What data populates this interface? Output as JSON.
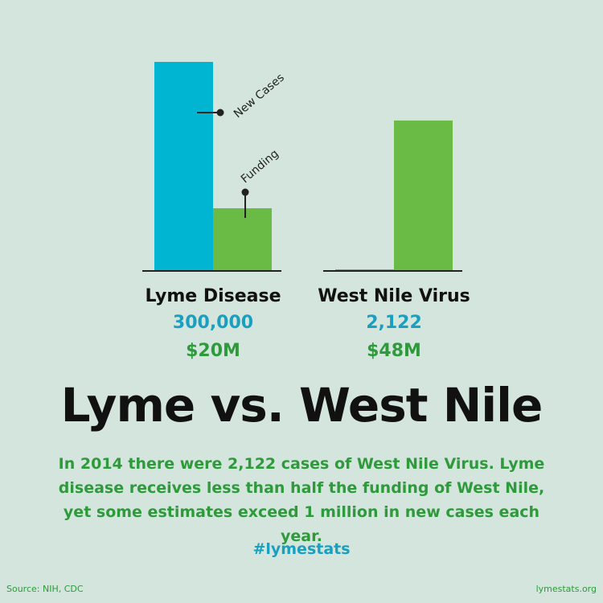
{
  "chart_data": {
    "type": "bar",
    "title": "Lyme vs. West Nile",
    "subtitle": "In 2014 there were 2,122 cases of West Nile Virus. Lyme disease receives less than half the funding of West Nile, yet some estimates exceed 1 million in new cases each year.",
    "hashtag": "#lymestats",
    "source": "Source: NIH, CDC",
    "website": "lymestats.org",
    "categories": [
      "Lyme Disease",
      "West Nile Virus"
    ],
    "series": [
      {
        "name": "New Cases",
        "color": "#00b5d1",
        "label_color": "#1a9fc0",
        "values": [
          300000,
          2122
        ],
        "value_labels": [
          "300,000",
          "2,122"
        ]
      },
      {
        "name": "Funding",
        "color": "#6abb45",
        "label_color": "#2e9a3b",
        "axis": "y2",
        "values": [
          20000000,
          48000000
        ],
        "value_labels": [
          "$20M",
          "$48M"
        ]
      }
    ],
    "ylim": [
      0,
      300000
    ],
    "y2lim": [
      0,
      66700000
    ]
  }
}
